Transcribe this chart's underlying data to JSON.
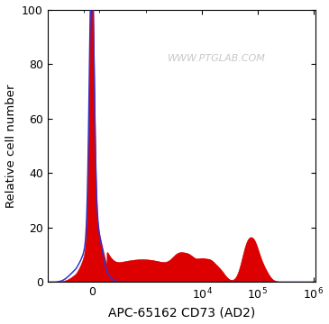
{
  "xlabel": "APC-65162 CD73 (AD2)",
  "ylabel": "Relative cell number",
  "watermark": "WWW.PTGLAB.COM",
  "ylim": [
    0,
    100
  ],
  "yticks": [
    0,
    20,
    40,
    60,
    80,
    100
  ],
  "xtick_vals": [
    0,
    10000,
    100000,
    1000000
  ],
  "blue_color": "#3333cc",
  "red_color": "#dd0000",
  "background_color": "#ffffff",
  "fig_width": 3.65,
  "fig_height": 3.6,
  "dpi": 100
}
